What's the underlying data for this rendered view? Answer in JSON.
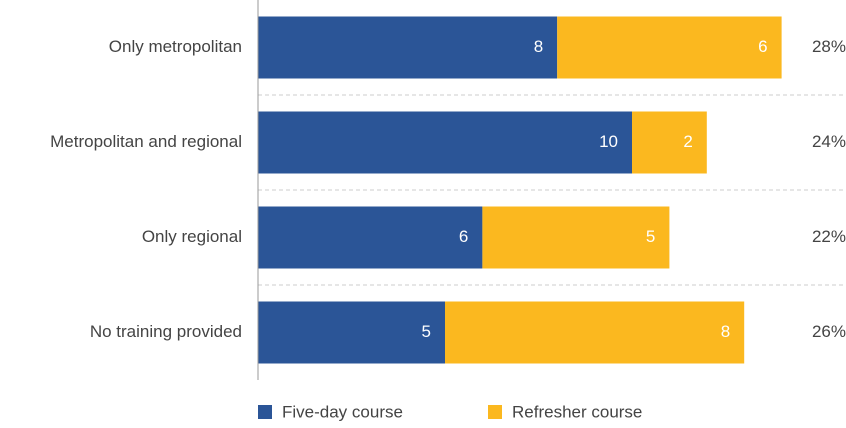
{
  "chart_data": {
    "type": "stacked-bar-horizontal",
    "categories": [
      "Only metropolitan",
      "Metropolitan and regional",
      "Only regional",
      "No training provided"
    ],
    "series": [
      {
        "name": "Five-day course",
        "color": "#2b5597",
        "values": [
          8,
          10,
          6,
          5
        ]
      },
      {
        "name": "Refresher course",
        "color": "#fbb81f",
        "values": [
          6,
          2,
          5,
          8
        ]
      }
    ],
    "shares": [
      28,
      24,
      22,
      26
    ],
    "share_labels": [
      "28%",
      "24%",
      "22%",
      "26%"
    ],
    "xlim": [
      0,
      15
    ]
  }
}
